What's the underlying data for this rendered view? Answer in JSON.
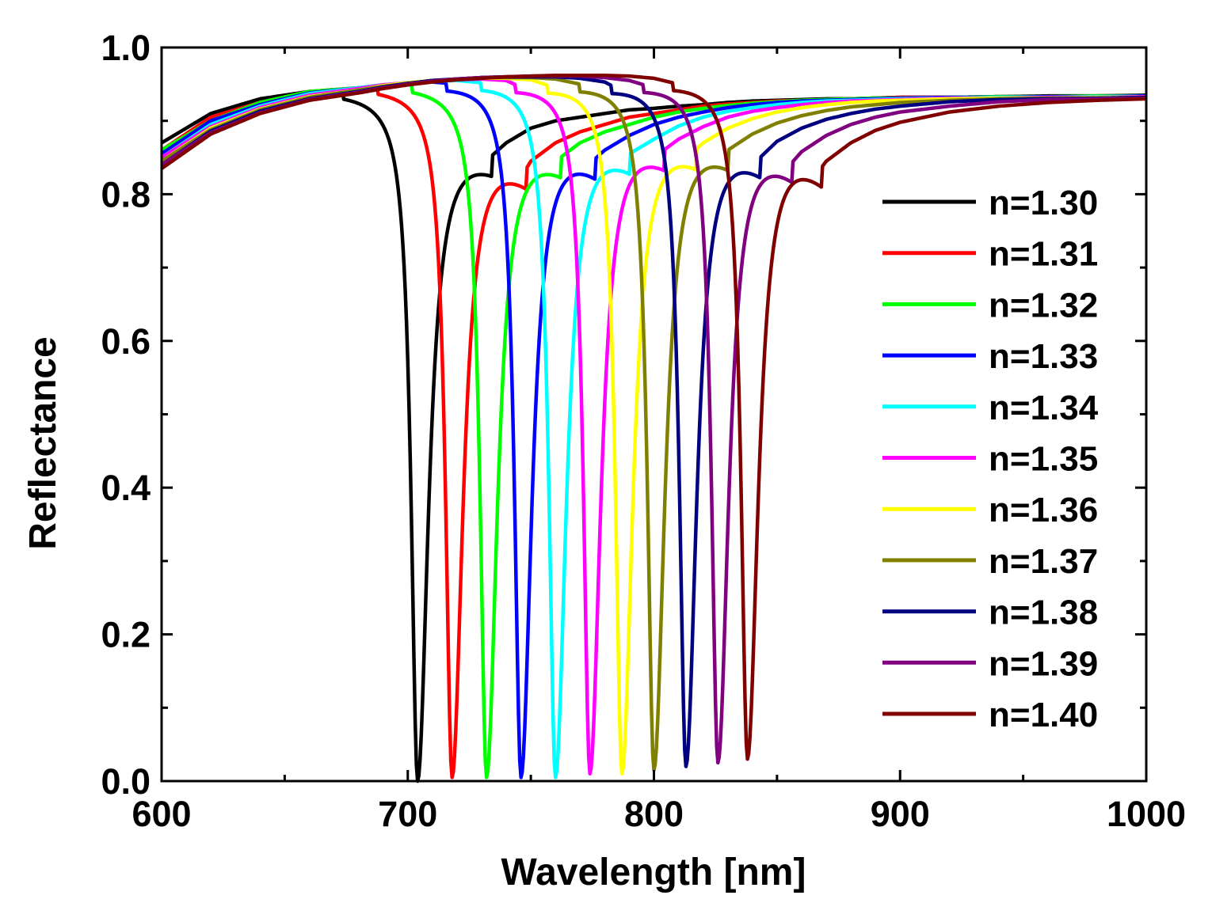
{
  "chart_data": {
    "type": "line",
    "title": "",
    "xlabel": "Wavelength [nm]",
    "ylabel": "Reflectance",
    "xlim": [
      600,
      1000
    ],
    "ylim": [
      0.0,
      1.0
    ],
    "x_ticks": [
      "600",
      "700",
      "800",
      "900",
      "1000"
    ],
    "y_ticks": [
      "0.0",
      "0.2",
      "0.4",
      "0.6",
      "0.8",
      "1.0"
    ],
    "grid": false,
    "legend_position": "right",
    "x": [
      600,
      620,
      640,
      660,
      680,
      690,
      700,
      710,
      720,
      730,
      740,
      750,
      760,
      770,
      780,
      790,
      800,
      810,
      820,
      830,
      840,
      850,
      860,
      870,
      880,
      890,
      900,
      920,
      940,
      960,
      980,
      1000
    ],
    "series": [
      {
        "name": "n=1.30",
        "color": "#000000",
        "resonance_nm": 704,
        "min_reflectance": 0.0,
        "values": [
          0.87,
          0.91,
          0.93,
          0.94,
          0.94,
          0.85,
          0.05,
          0.58,
          0.77,
          0.84,
          0.87,
          0.89,
          0.9,
          0.905,
          0.91,
          0.915,
          0.917,
          0.92,
          0.922,
          0.925,
          0.927,
          0.928,
          0.929,
          0.93,
          0.93,
          0.931,
          0.932,
          0.932,
          0.933,
          0.934,
          0.934,
          0.935
        ]
      },
      {
        "name": "n=1.31",
        "color": "#ff0000",
        "resonance_nm": 718,
        "min_reflectance": 0.005,
        "values": [
          0.86,
          0.905,
          0.925,
          0.94,
          0.945,
          0.947,
          0.93,
          0.82,
          0.08,
          0.63,
          0.79,
          0.845,
          0.87,
          0.885,
          0.895,
          0.905,
          0.91,
          0.915,
          0.92,
          0.923,
          0.925,
          0.927,
          0.928,
          0.929,
          0.93,
          0.931,
          0.932,
          0.932,
          0.933,
          0.933,
          0.934,
          0.934
        ]
      },
      {
        "name": "n=1.32",
        "color": "#00ff00",
        "resonance_nm": 732,
        "min_reflectance": 0.005,
        "values": [
          0.86,
          0.9,
          0.925,
          0.94,
          0.945,
          0.948,
          0.95,
          0.945,
          0.86,
          0.05,
          0.66,
          0.79,
          0.845,
          0.87,
          0.885,
          0.895,
          0.905,
          0.912,
          0.917,
          0.921,
          0.924,
          0.926,
          0.928,
          0.929,
          0.93,
          0.931,
          0.931,
          0.932,
          0.933,
          0.933,
          0.934,
          0.934
        ]
      },
      {
        "name": "n=1.33",
        "color": "#0000ff",
        "resonance_nm": 746,
        "min_reflectance": 0.005,
        "values": [
          0.855,
          0.9,
          0.922,
          0.938,
          0.945,
          0.949,
          0.951,
          0.953,
          0.95,
          0.9,
          0.55,
          0.25,
          0.75,
          0.83,
          0.86,
          0.88,
          0.895,
          0.905,
          0.912,
          0.918,
          0.922,
          0.925,
          0.927,
          0.928,
          0.929,
          0.93,
          0.931,
          0.932,
          0.932,
          0.933,
          0.933,
          0.934
        ]
      },
      {
        "name": "n=1.34",
        "color": "#00ffff",
        "resonance_nm": 760,
        "min_reflectance": 0.005,
        "values": [
          0.85,
          0.895,
          0.92,
          0.937,
          0.945,
          0.949,
          0.952,
          0.954,
          0.955,
          0.952,
          0.92,
          0.7,
          0.02,
          0.7,
          0.81,
          0.855,
          0.875,
          0.893,
          0.905,
          0.913,
          0.918,
          0.922,
          0.925,
          0.927,
          0.928,
          0.929,
          0.93,
          0.931,
          0.932,
          0.932,
          0.933,
          0.933
        ]
      },
      {
        "name": "n=1.35",
        "color": "#ff00ff",
        "resonance_nm": 774,
        "min_reflectance": 0.01,
        "values": [
          0.85,
          0.892,
          0.918,
          0.935,
          0.944,
          0.949,
          0.952,
          0.954,
          0.956,
          0.957,
          0.955,
          0.94,
          0.75,
          0.12,
          0.66,
          0.8,
          0.85,
          0.875,
          0.892,
          0.905,
          0.913,
          0.918,
          0.922,
          0.925,
          0.927,
          0.928,
          0.929,
          0.931,
          0.931,
          0.932,
          0.932,
          0.933
        ]
      },
      {
        "name": "n=1.36",
        "color": "#ffff00",
        "resonance_nm": 787,
        "min_reflectance": 0.01,
        "values": [
          0.845,
          0.89,
          0.916,
          0.933,
          0.942,
          0.948,
          0.952,
          0.955,
          0.957,
          0.958,
          0.958,
          0.956,
          0.945,
          0.88,
          0.45,
          0.25,
          0.76,
          0.84,
          0.87,
          0.89,
          0.903,
          0.912,
          0.918,
          0.922,
          0.925,
          0.927,
          0.928,
          0.93,
          0.931,
          0.931,
          0.932,
          0.932
        ]
      },
      {
        "name": "n=1.37",
        "color": "#808000",
        "resonance_nm": 800,
        "min_reflectance": 0.015,
        "values": [
          0.845,
          0.888,
          0.915,
          0.932,
          0.942,
          0.947,
          0.951,
          0.955,
          0.957,
          0.959,
          0.959,
          0.959,
          0.957,
          0.95,
          0.92,
          0.75,
          0.03,
          0.72,
          0.82,
          0.86,
          0.882,
          0.897,
          0.907,
          0.914,
          0.919,
          0.922,
          0.925,
          0.928,
          0.93,
          0.931,
          0.931,
          0.932
        ]
      },
      {
        "name": "n=1.38",
        "color": "#000080",
        "resonance_nm": 813,
        "min_reflectance": 0.02,
        "values": [
          0.84,
          0.886,
          0.913,
          0.93,
          0.94,
          0.946,
          0.951,
          0.955,
          0.957,
          0.959,
          0.96,
          0.96,
          0.96,
          0.958,
          0.953,
          0.935,
          0.85,
          0.35,
          0.3,
          0.76,
          0.84,
          0.872,
          0.89,
          0.902,
          0.91,
          0.916,
          0.92,
          0.926,
          0.929,
          0.93,
          0.931,
          0.932
        ]
      },
      {
        "name": "n=1.39",
        "color": "#800080",
        "resonance_nm": 826,
        "min_reflectance": 0.025,
        "values": [
          0.84,
          0.884,
          0.911,
          0.929,
          0.939,
          0.945,
          0.95,
          0.954,
          0.957,
          0.959,
          0.96,
          0.961,
          0.961,
          0.961,
          0.959,
          0.955,
          0.945,
          0.9,
          0.6,
          0.08,
          0.71,
          0.82,
          0.858,
          0.88,
          0.895,
          0.905,
          0.912,
          0.92,
          0.926,
          0.929,
          0.93,
          0.931
        ]
      },
      {
        "name": "n=1.40",
        "color": "#800000",
        "resonance_nm": 838,
        "min_reflectance": 0.03,
        "values": [
          0.835,
          0.882,
          0.91,
          0.928,
          0.938,
          0.944,
          0.949,
          0.953,
          0.956,
          0.958,
          0.96,
          0.961,
          0.962,
          0.962,
          0.962,
          0.961,
          0.958,
          0.95,
          0.9,
          0.65,
          0.08,
          0.7,
          0.8,
          0.845,
          0.87,
          0.887,
          0.898,
          0.912,
          0.92,
          0.925,
          0.928,
          0.93
        ]
      }
    ]
  }
}
